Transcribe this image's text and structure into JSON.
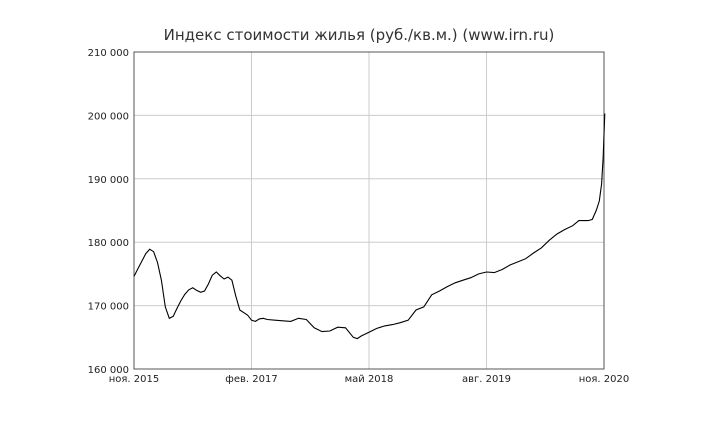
{
  "chart_data": {
    "type": "line",
    "title": "Индекс стоимости жилья (руб./кв.м.) (www.irn.ru)",
    "xlabel": "",
    "ylabel": "",
    "x_ticks": [
      {
        "label": "ноя. 2015",
        "t": 0
      },
      {
        "label": "фев. 2017",
        "t": 15
      },
      {
        "label": "май 2018",
        "t": 30
      },
      {
        "label": "авг. 2019",
        "t": 45
      },
      {
        "label": "ноя. 2020",
        "t": 60
      }
    ],
    "y_ticks": [
      {
        "label": "160 000",
        "v": 160000
      },
      {
        "label": "170 000",
        "v": 170000
      },
      {
        "label": "180 000",
        "v": 180000
      },
      {
        "label": "190 000",
        "v": 190000
      },
      {
        "label": "200 000",
        "v": 200000
      },
      {
        "label": "210 000",
        "v": 210000
      }
    ],
    "ylim": [
      160000,
      210000
    ],
    "x_range": [
      "ноя. 2015",
      "ноя. 2020"
    ],
    "grid": true,
    "line_color": "#000000",
    "series": [
      {
        "name": "",
        "points": [
          [
            0,
            174600
          ],
          [
            0.5,
            175800
          ],
          [
            1,
            177000
          ],
          [
            1.5,
            178200
          ],
          [
            2,
            178900
          ],
          [
            2.5,
            178500
          ],
          [
            3,
            176800
          ],
          [
            3.5,
            174000
          ],
          [
            4,
            169800
          ],
          [
            4.5,
            168000
          ],
          [
            5,
            168300
          ],
          [
            5.5,
            169600
          ],
          [
            6,
            170800
          ],
          [
            6.5,
            171800
          ],
          [
            7,
            172500
          ],
          [
            7.5,
            172800
          ],
          [
            8,
            172400
          ],
          [
            8.5,
            172100
          ],
          [
            9,
            172300
          ],
          [
            9.5,
            173400
          ],
          [
            10,
            174800
          ],
          [
            10.5,
            175300
          ],
          [
            11,
            174700
          ],
          [
            11.5,
            174200
          ],
          [
            12,
            174500
          ],
          [
            12.5,
            174000
          ],
          [
            13,
            171500
          ],
          [
            13.5,
            169300
          ],
          [
            14,
            168900
          ],
          [
            14.5,
            168500
          ],
          [
            15,
            167700
          ],
          [
            15.5,
            167500
          ],
          [
            16,
            167900
          ],
          [
            16.5,
            168000
          ],
          [
            17,
            167800
          ],
          [
            18,
            167700
          ],
          [
            19,
            167600
          ],
          [
            20,
            167500
          ],
          [
            21,
            168000
          ],
          [
            22,
            167800
          ],
          [
            23,
            166500
          ],
          [
            24,
            165900
          ],
          [
            25,
            166000
          ],
          [
            26,
            166600
          ],
          [
            27,
            166500
          ],
          [
            28,
            165000
          ],
          [
            28.5,
            164800
          ],
          [
            29,
            165200
          ],
          [
            30,
            165800
          ],
          [
            31,
            166400
          ],
          [
            32,
            166800
          ],
          [
            33,
            167000
          ],
          [
            34,
            167300
          ],
          [
            35,
            167700
          ],
          [
            36,
            169300
          ],
          [
            37,
            169800
          ],
          [
            38,
            171700
          ],
          [
            39,
            172300
          ],
          [
            40,
            173000
          ],
          [
            41,
            173600
          ],
          [
            42,
            174000
          ],
          [
            43,
            174400
          ],
          [
            44,
            175000
          ],
          [
            45,
            175300
          ],
          [
            46,
            175200
          ],
          [
            47,
            175700
          ],
          [
            48,
            176400
          ],
          [
            49,
            176900
          ],
          [
            50,
            177400
          ],
          [
            51,
            178300
          ],
          [
            52,
            179100
          ],
          [
            53,
            180300
          ],
          [
            54,
            181300
          ],
          [
            55,
            182000
          ],
          [
            56,
            182600
          ],
          [
            56.8,
            183400
          ],
          [
            57.5,
            183400
          ],
          [
            58,
            183400
          ],
          [
            58.5,
            183600
          ],
          [
            59,
            185000
          ],
          [
            59.4,
            186500
          ],
          [
            59.7,
            189200
          ],
          [
            59.9,
            193500
          ],
          [
            60,
            197000
          ],
          [
            60.1,
            200300
          ]
        ]
      }
    ]
  }
}
